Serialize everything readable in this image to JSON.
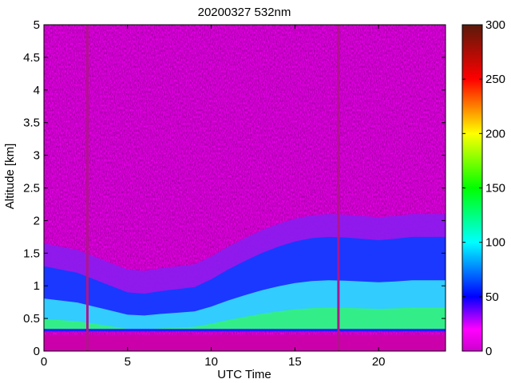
{
  "chart_data": {
    "type": "heatmap",
    "title": "20200327 532nm",
    "xlabel": "UTC Time",
    "ylabel": "Altitude [km]",
    "xlim": [
      0,
      24
    ],
    "ylim": [
      0,
      5
    ],
    "x_ticks": [
      0,
      5,
      10,
      15,
      20
    ],
    "x_tick_labels": [
      "0",
      "5",
      "10",
      "15",
      "20"
    ],
    "y_ticks": [
      0,
      0.5,
      1,
      1.5,
      2,
      2.5,
      3,
      3.5,
      4,
      4.5,
      5
    ],
    "y_tick_labels": [
      "0",
      "0.5",
      "1",
      "1.5",
      "2",
      "2.5",
      "3",
      "3.5",
      "4",
      "4.5",
      "5"
    ],
    "colorbar": {
      "range": [
        0,
        300
      ],
      "ticks": [
        0,
        50,
        100,
        150,
        200,
        250,
        300
      ],
      "tick_labels": [
        "0",
        "50",
        "100",
        "150",
        "200",
        "250",
        "300"
      ],
      "colormap": "hsv-reversed (magenta-blue-cyan-green-yellow-red-brown)",
      "stops": [
        {
          "value": 0,
          "color": "#cc00cc"
        },
        {
          "value": 20,
          "color": "#ff00ff"
        },
        {
          "value": 50,
          "color": "#0000ff"
        },
        {
          "value": 100,
          "color": "#00ffff"
        },
        {
          "value": 150,
          "color": "#00ff00"
        },
        {
          "value": 200,
          "color": "#ffff00"
        },
        {
          "value": 250,
          "color": "#ff0000"
        },
        {
          "value": 300,
          "color": "#5a1a0a"
        }
      ]
    },
    "boundary_layer_top_km": [
      {
        "x": 0,
        "y": 1.3
      },
      {
        "x": 1,
        "y": 1.25
      },
      {
        "x": 2,
        "y": 1.2
      },
      {
        "x": 3,
        "y": 1.1
      },
      {
        "x": 4,
        "y": 1.0
      },
      {
        "x": 5,
        "y": 0.9
      },
      {
        "x": 6,
        "y": 0.88
      },
      {
        "x": 7,
        "y": 0.92
      },
      {
        "x": 8,
        "y": 0.95
      },
      {
        "x": 9,
        "y": 0.98
      },
      {
        "x": 10,
        "y": 1.1
      },
      {
        "x": 11,
        "y": 1.25
      },
      {
        "x": 12,
        "y": 1.38
      },
      {
        "x": 13,
        "y": 1.5
      },
      {
        "x": 14,
        "y": 1.6
      },
      {
        "x": 15,
        "y": 1.68
      },
      {
        "x": 16,
        "y": 1.73
      },
      {
        "x": 17,
        "y": 1.75
      },
      {
        "x": 18,
        "y": 1.74
      },
      {
        "x": 19,
        "y": 1.72
      },
      {
        "x": 20,
        "y": 1.7
      },
      {
        "x": 21,
        "y": 1.72
      },
      {
        "x": 22,
        "y": 1.75
      },
      {
        "x": 23,
        "y": 1.75
      },
      {
        "x": 24,
        "y": 1.75
      }
    ],
    "surface_layer_km": [
      0,
      0.3
    ],
    "data_gaps_utc": [
      2.6,
      17.6
    ]
  }
}
